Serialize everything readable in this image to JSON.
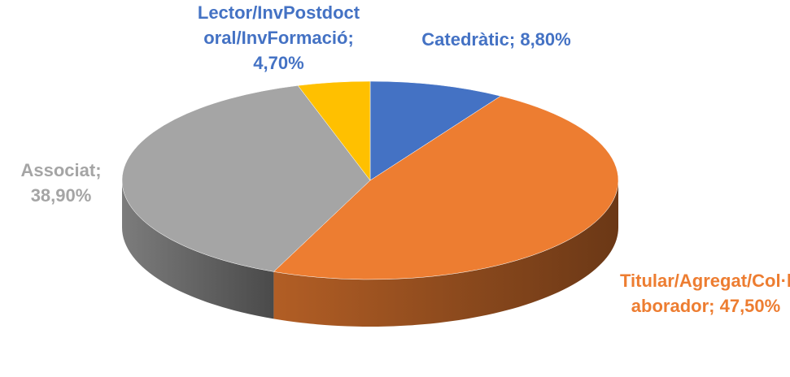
{
  "chart_data": {
    "type": "pie",
    "categories": [
      "Catedràtic",
      "Titular/Agregat/Col·laborador",
      "Associat",
      "Lector/InvPostdoctoral/InvFormació"
    ],
    "values": [
      8.8,
      47.5,
      38.9,
      4.7
    ],
    "value_labels": [
      "8,80%",
      "47,50%",
      "38,90%",
      "4,70%"
    ],
    "label_separator": "; ",
    "colors": [
      "#4472c4",
      "#ed7d31",
      "#a5a5a5",
      "#ffc000"
    ],
    "label_colors": [
      "#4472c4",
      "#ed7d31",
      "#a5a5a5",
      "#4472c4"
    ]
  }
}
